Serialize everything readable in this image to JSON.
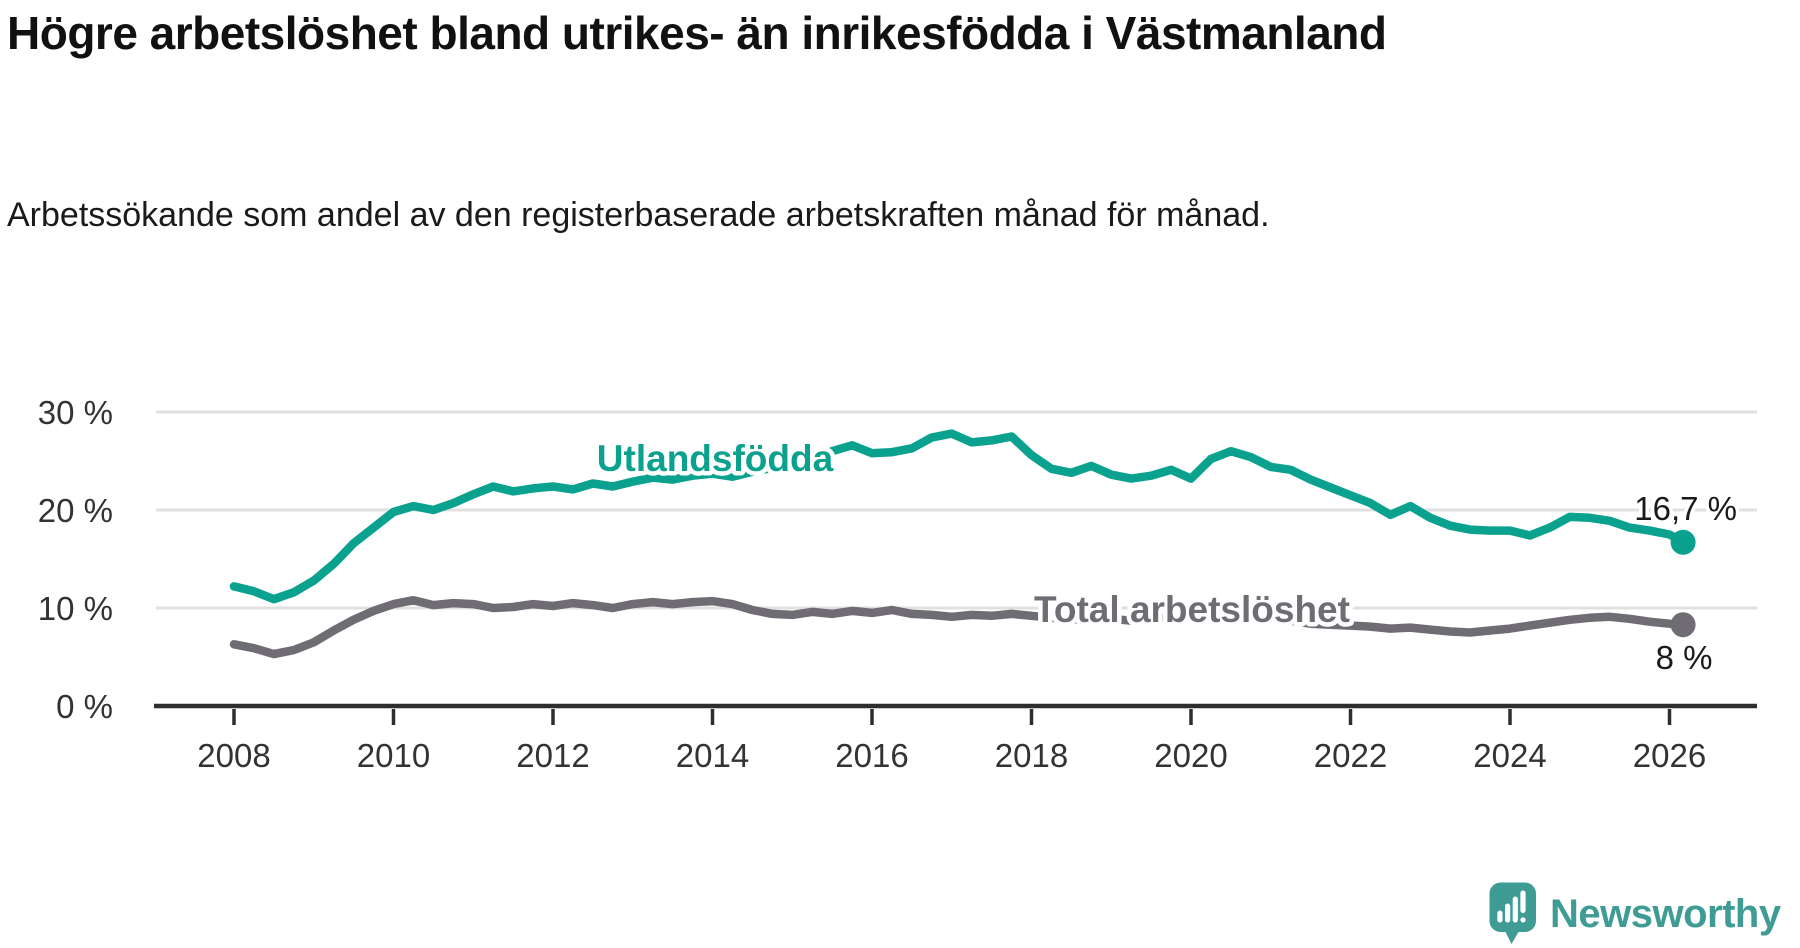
{
  "header": {
    "title": "Högre arbetslöshet bland utrikes- än inrikesfödda i Västmanland",
    "subtitle": "Arbetssökande som andel av den registerbaserade arbetskraften månad för månad."
  },
  "chart_data": {
    "type": "line",
    "title": "Högre arbetslöshet bland utrikes- än inrikesfödda i Västmanland",
    "xlabel": "",
    "ylabel": "",
    "grid": "horizontal",
    "legend_position": "inline-labels",
    "xlim": [
      2007,
      2027.2
    ],
    "ylim": [
      0,
      31
    ],
    "y_ticks": [
      {
        "value": 30,
        "label": "30 %"
      },
      {
        "value": 20,
        "label": "20 %"
      },
      {
        "value": 10,
        "label": "10 %"
      },
      {
        "value": 0,
        "label": "0 %"
      }
    ],
    "x_ticks": [
      {
        "value": 2008,
        "label": "2008"
      },
      {
        "value": 2010,
        "label": "2010"
      },
      {
        "value": 2012,
        "label": "2012"
      },
      {
        "value": 2014,
        "label": "2014"
      },
      {
        "value": 2016,
        "label": "2016"
      },
      {
        "value": 2018,
        "label": "2018"
      },
      {
        "value": 2020,
        "label": "2020"
      },
      {
        "value": 2022,
        "label": "2022"
      },
      {
        "value": 2024,
        "label": "2024"
      },
      {
        "value": 2026,
        "label": "2026"
      }
    ],
    "x": [
      2008,
      2008.25,
      2008.5,
      2008.75,
      2009,
      2009.25,
      2009.5,
      2009.75,
      2010,
      2010.25,
      2010.5,
      2010.75,
      2011,
      2011.25,
      2011.5,
      2011.75,
      2012,
      2012.25,
      2012.5,
      2012.75,
      2013,
      2013.25,
      2013.5,
      2013.75,
      2014,
      2014.25,
      2014.5,
      2014.75,
      2015,
      2015.25,
      2015.5,
      2015.75,
      2016,
      2016.25,
      2016.5,
      2016.75,
      2017,
      2017.25,
      2017.5,
      2017.75,
      2018,
      2018.25,
      2018.5,
      2018.75,
      2019,
      2019.25,
      2019.5,
      2019.75,
      2020,
      2020.25,
      2020.5,
      2020.75,
      2021,
      2021.25,
      2021.5,
      2021.75,
      2022,
      2022.25,
      2022.5,
      2022.75,
      2023,
      2023.25,
      2023.5,
      2023.75,
      2024,
      2024.25,
      2024.5,
      2024.75,
      2025,
      2025.25,
      2025.5,
      2025.75,
      2026,
      2026.17
    ],
    "series": [
      {
        "name": "Utlandsfödda",
        "color": "#0aa28f",
        "end_label": "16,7 %",
        "last_value": 16.7,
        "values": [
          12.2,
          11.7,
          10.9,
          11.6,
          12.8,
          14.5,
          16.6,
          18.2,
          19.8,
          20.4,
          20.0,
          20.7,
          21.6,
          22.4,
          21.9,
          22.2,
          22.4,
          22.1,
          22.7,
          22.4,
          22.9,
          23.3,
          23.1,
          23.5,
          23.7,
          23.4,
          23.9,
          24.3,
          24.6,
          25.0,
          26.0,
          26.6,
          25.8,
          25.9,
          26.3,
          27.4,
          27.8,
          26.9,
          27.1,
          27.5,
          25.6,
          24.2,
          23.8,
          24.5,
          23.6,
          23.2,
          23.5,
          24.1,
          23.2,
          25.2,
          26.0,
          25.4,
          24.4,
          24.1,
          23.1,
          22.3,
          21.5,
          20.7,
          19.5,
          20.4,
          19.2,
          18.4,
          18.0,
          17.9,
          17.9,
          17.4,
          18.2,
          19.3,
          19.2,
          18.9,
          18.2,
          17.9,
          17.5,
          16.7
        ]
      },
      {
        "name": "Total arbetslöshet",
        "color": "#706c74",
        "end_label": "8 %",
        "last_value": 8.3,
        "values": [
          6.3,
          5.9,
          5.3,
          5.7,
          6.5,
          7.7,
          8.8,
          9.7,
          10.4,
          10.8,
          10.3,
          10.5,
          10.4,
          10.0,
          10.1,
          10.4,
          10.2,
          10.5,
          10.3,
          10.0,
          10.4,
          10.6,
          10.4,
          10.6,
          10.7,
          10.4,
          9.8,
          9.4,
          9.3,
          9.6,
          9.4,
          9.7,
          9.5,
          9.8,
          9.4,
          9.3,
          9.1,
          9.3,
          9.2,
          9.4,
          9.2,
          9.0,
          8.8,
          9.0,
          8.9,
          8.7,
          8.8,
          9.1,
          9.2,
          9.6,
          9.5,
          9.3,
          9.1,
          8.7,
          8.4,
          8.3,
          8.2,
          8.1,
          7.9,
          8.0,
          7.8,
          7.6,
          7.5,
          7.7,
          7.9,
          8.2,
          8.5,
          8.8,
          9.0,
          9.1,
          8.9,
          8.6,
          8.4,
          8.3
        ]
      }
    ]
  },
  "footer": {
    "brand": "Newsworthy"
  },
  "colors": {
    "series_utlandsfodda": "#0aa28f",
    "series_total": "#706c74",
    "brand_teal": "#3f9c95",
    "gridline": "#e0e0e0",
    "axis": "#2e2e2e",
    "tick_text": "#333333",
    "text": "#1a1a1a"
  }
}
